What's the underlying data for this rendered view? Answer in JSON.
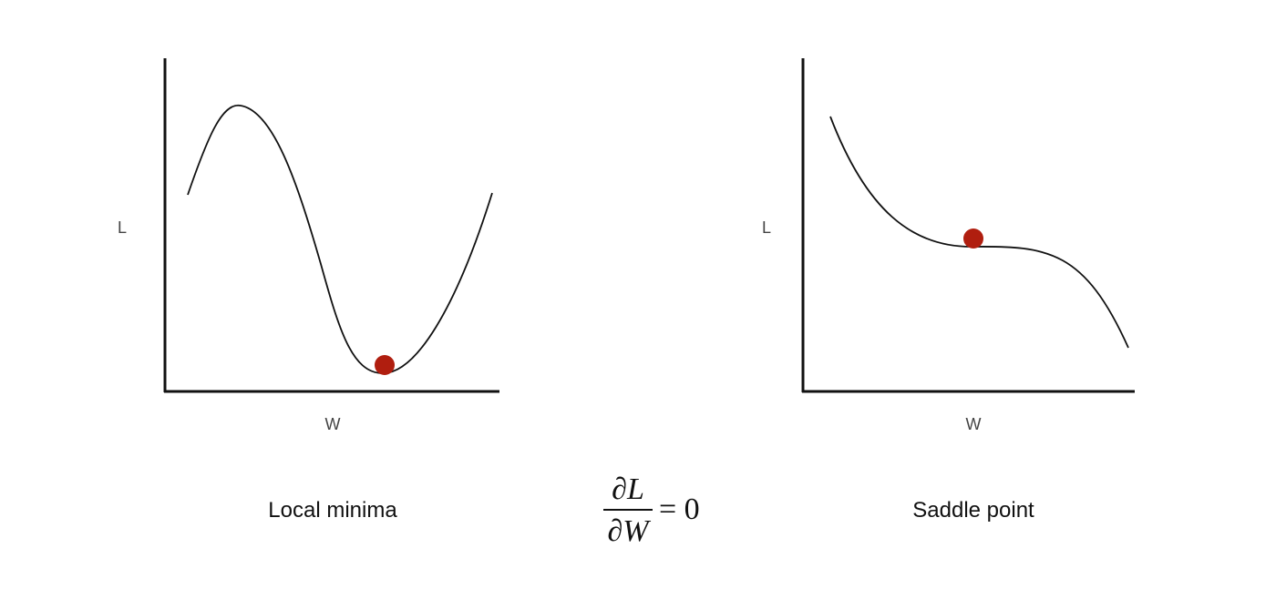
{
  "panels": [
    {
      "id": "local-minima",
      "y_axis_label": "L",
      "x_axis_label": "W",
      "caption": "Local minima",
      "marker_color": "#b01e0f"
    },
    {
      "id": "saddle-point",
      "y_axis_label": "L",
      "x_axis_label": "W",
      "caption": "Saddle point",
      "marker_color": "#b01e0f"
    }
  ],
  "equation": {
    "numerator": "∂L",
    "denominator": "∂W",
    "rhs": "= 0"
  },
  "colors": {
    "curve": "#111111",
    "axis": "#111111",
    "marker": "#b01e0f"
  }
}
